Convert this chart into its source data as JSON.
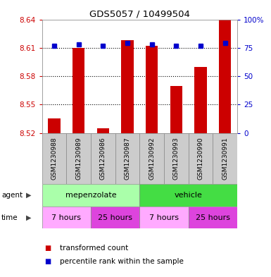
{
  "title": "GDS5057 / 10499504",
  "samples": [
    "GSM1230988",
    "GSM1230989",
    "GSM1230986",
    "GSM1230987",
    "GSM1230992",
    "GSM1230993",
    "GSM1230990",
    "GSM1230991"
  ],
  "transformed_counts": [
    8.535,
    8.61,
    8.525,
    8.618,
    8.612,
    8.57,
    8.59,
    8.64
  ],
  "percentile_ranks": [
    77,
    78,
    77,
    79,
    78,
    77,
    77,
    79
  ],
  "ylim_left": [
    8.52,
    8.64
  ],
  "ylim_right": [
    0,
    100
  ],
  "yticks_left": [
    8.52,
    8.55,
    8.58,
    8.61,
    8.64
  ],
  "yticks_right": [
    0,
    25,
    50,
    75,
    100
  ],
  "bar_color": "#cc0000",
  "dot_color": "#0000cc",
  "bar_bottom": 8.52,
  "agent_groups": [
    {
      "label": "mepenzolate",
      "start": 0,
      "end": 4,
      "color": "#aaffaa"
    },
    {
      "label": "vehicle",
      "start": 4,
      "end": 8,
      "color": "#44dd44"
    }
  ],
  "time_groups": [
    {
      "label": "7 hours",
      "start": 0,
      "end": 2,
      "color": "#ffaaff"
    },
    {
      "label": "25 hours",
      "start": 2,
      "end": 4,
      "color": "#dd44dd"
    },
    {
      "label": "7 hours",
      "start": 4,
      "end": 6,
      "color": "#ffaaff"
    },
    {
      "label": "25 hours",
      "start": 6,
      "end": 8,
      "color": "#dd44dd"
    }
  ],
  "legend_items": [
    {
      "color": "#cc0000",
      "label": "transformed count"
    },
    {
      "color": "#0000cc",
      "label": "percentile rank within the sample"
    }
  ],
  "ylabel_left_color": "#cc0000",
  "ylabel_right_color": "#0000cc",
  "grid_color": "#000000",
  "background_color": "#ffffff",
  "sample_bg_color": "#cccccc",
  "grid_dotted_ticks": [
    8.55,
    8.58,
    8.61
  ]
}
